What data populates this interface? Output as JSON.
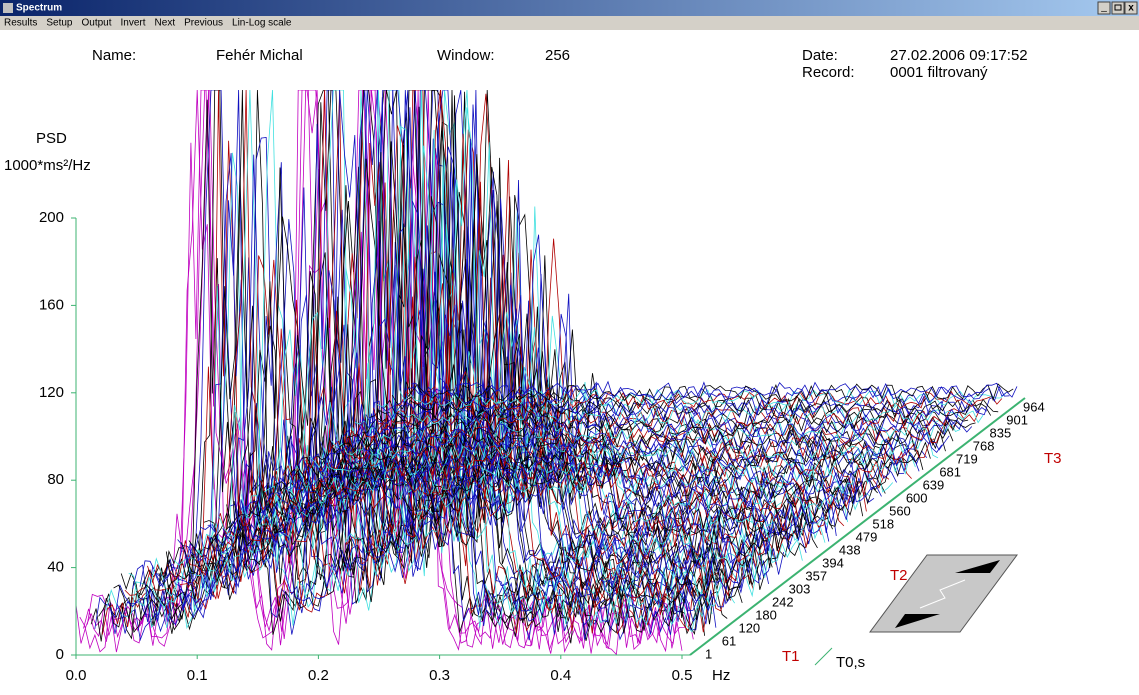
{
  "window": {
    "title": "Spectrum",
    "controls": [
      "_",
      "x"
    ]
  },
  "menu": [
    "Results",
    "Setup",
    "Output",
    "Invert",
    "Next",
    "Previous",
    "Lin-Log scale"
  ],
  "header": {
    "name_label": "Name:",
    "name": "Fehér Michal",
    "window_label": "Window:",
    "window": "256",
    "date_label": "Date:",
    "date": "27.02.2006 09:17:52",
    "record_label": "Record:",
    "record": "0001 filtrovaný"
  },
  "chart_data": {
    "type": "waterfall",
    "y_label": "PSD",
    "y_unit": "1000*ms²/Hz",
    "x_label": "Hz",
    "ylim": [
      0,
      200
    ],
    "yticks": [
      0,
      40,
      80,
      120,
      160,
      200
    ],
    "xlim": [
      0,
      0.5
    ],
    "xticks": [
      {
        "value": 0,
        "label": "0.0"
      },
      0.1,
      0.2,
      0.3,
      0.4,
      {
        "value": 0.5,
        "label": "0.5"
      }
    ],
    "zticks": [
      1,
      61,
      120,
      180,
      242,
      303,
      357,
      394,
      438,
      479,
      518,
      560,
      600,
      639,
      681,
      719,
      768,
      835,
      901,
      964
    ],
    "z_markers": [
      "T1",
      "T2",
      "T3"
    ],
    "z_label": "T0,s"
  }
}
